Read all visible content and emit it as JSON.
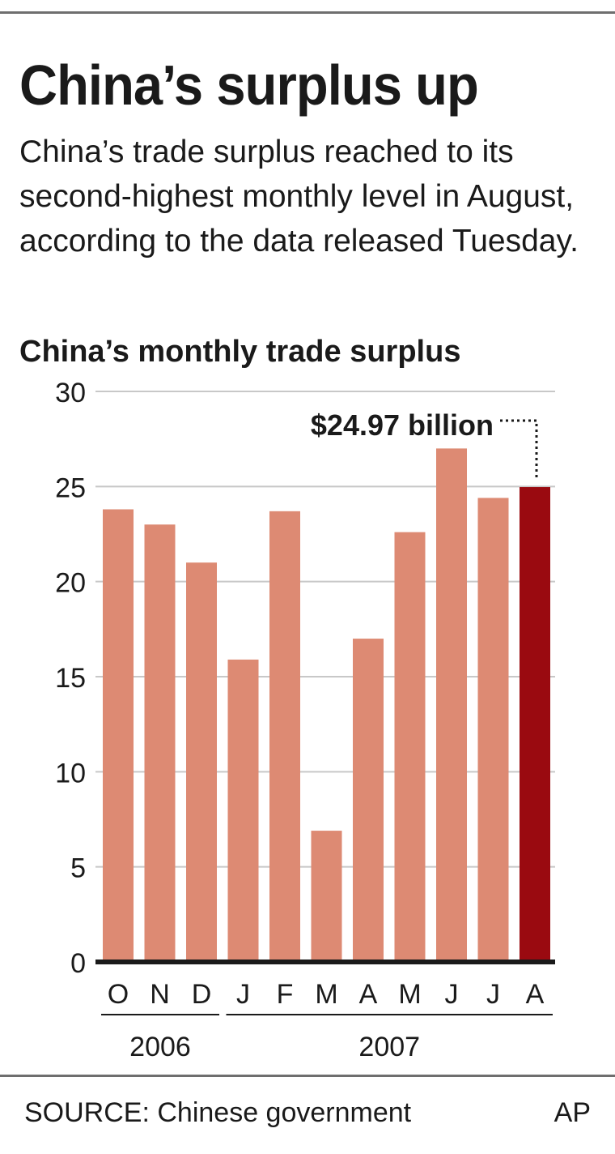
{
  "title": "China’s surplus up",
  "subtitle": "China’s trade surplus reached to its second-highest monthly level in August, according to the data released Tuesday.",
  "chart_data": {
    "type": "bar",
    "title": "China’s monthly trade surplus",
    "categories": [
      "O",
      "N",
      "D",
      "J",
      "F",
      "M",
      "A",
      "M",
      "J",
      "J",
      "A"
    ],
    "values": [
      23.8,
      23.0,
      21.0,
      15.9,
      23.7,
      6.9,
      17.0,
      22.6,
      27.0,
      24.4,
      24.97
    ],
    "year_groups": [
      {
        "label": "2006",
        "first": 0,
        "last": 2
      },
      {
        "label": "2007",
        "first": 3,
        "last": 10
      }
    ],
    "ylim": [
      0,
      30
    ],
    "yticks": [
      0,
      5,
      10,
      15,
      20,
      25,
      30
    ],
    "grid": true,
    "highlight_index": 10,
    "annotation": "$24.97 billion",
    "colors": {
      "bar": "#dd8a73",
      "highlight": "#9a0a10",
      "grid": "#c8c8c8",
      "axis": "#1a1a1a"
    }
  },
  "footer": {
    "source": "SOURCE: Chinese government",
    "credit": "AP"
  }
}
